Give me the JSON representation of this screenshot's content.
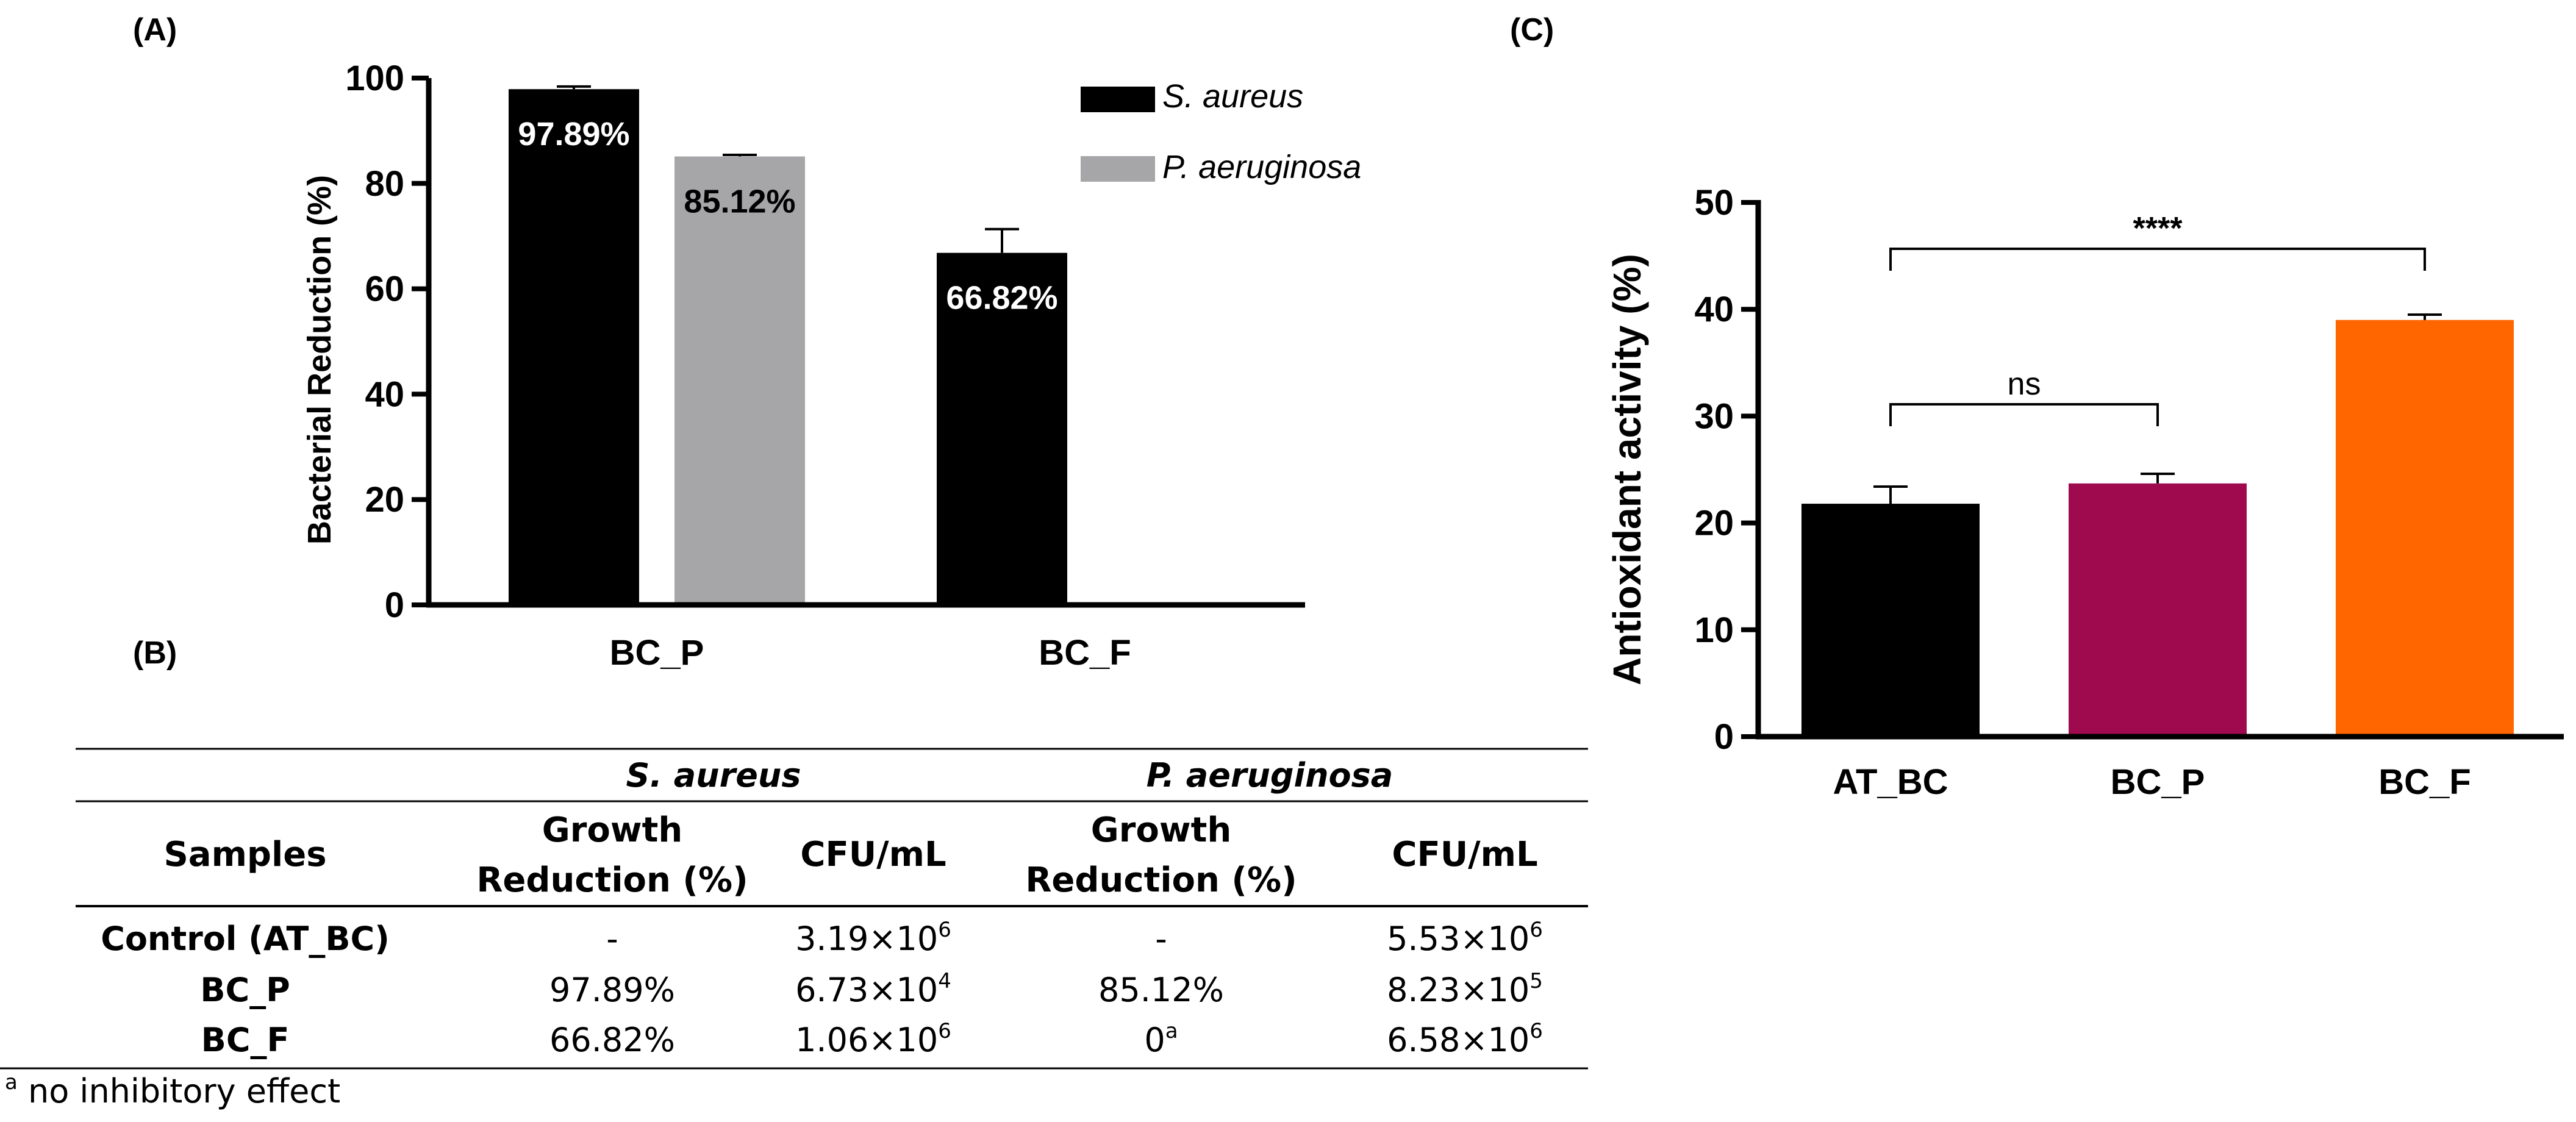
{
  "panels": {
    "a_label": "(A)",
    "b_label": "(B)",
    "c_label": "(C)"
  },
  "chart_data": [
    {
      "type": "bar",
      "ylabel": "Bacterial Reduction (%)",
      "xlabel": "",
      "ylim": [
        0,
        100
      ],
      "yticks": [
        "0",
        "20",
        "40",
        "60",
        "80",
        "100"
      ],
      "categories": [
        "BC_P",
        "BC_F"
      ],
      "series": [
        {
          "name": "S. aureus",
          "color": "#000000",
          "values": [
            97.89,
            66.82
          ],
          "errors": [
            0.5,
            4.5
          ],
          "labels": [
            "97.89%",
            "66.82%"
          ]
        },
        {
          "name": "P. aeruginosa",
          "color": "#a6a6a8",
          "values": [
            85.12,
            0
          ],
          "errors": [
            0.3,
            0
          ],
          "labels": [
            "85.12%",
            ""
          ]
        }
      ],
      "legend": "top-right",
      "grid": false
    },
    {
      "type": "bar",
      "ylabel": "Antioxidant activity (%)",
      "xlabel": "",
      "ylim": [
        0,
        50
      ],
      "yticks": [
        "0",
        "10",
        "20",
        "30",
        "40",
        "50"
      ],
      "categories": [
        "AT_BC",
        "BC_P",
        "BC_F"
      ],
      "values": [
        21.8,
        23.7,
        39.0
      ],
      "errors": [
        1.6,
        0.9,
        0.5
      ],
      "colors": [
        "#000000",
        "#9e0a4d",
        "#ff6600"
      ],
      "annotations": [
        {
          "from": "AT_BC",
          "to": "BC_P",
          "text": "ns"
        },
        {
          "from": "AT_BC",
          "to": "BC_F",
          "text": "****"
        }
      ],
      "grid": false
    },
    {
      "type": "table",
      "groups": [
        "S. aureus",
        "P. aeruginosa"
      ],
      "columns": {
        "samples": "Samples",
        "growth_line1": "Growth",
        "growth_line2": "Reduction (%)",
        "cfu": "CFU/mL"
      },
      "rows": [
        {
          "sample": "Control (AT_BC)",
          "sa_growth": "-",
          "sa_cfu": "3.19×10",
          "sa_cfu_exp": "6",
          "pa_growth": "-",
          "pa_growth_sup": "",
          "pa_cfu": "5.53×10",
          "pa_cfu_exp": "6"
        },
        {
          "sample": "BC_P",
          "sa_growth": "97.89%",
          "sa_cfu": "6.73×10",
          "sa_cfu_exp": "4",
          "pa_growth": "85.12%",
          "pa_growth_sup": "",
          "pa_cfu": "8.23×10",
          "pa_cfu_exp": "5"
        },
        {
          "sample": "BC_F",
          "sa_growth": "66.82%",
          "sa_cfu": "1.06×10",
          "sa_cfu_exp": "6",
          "pa_growth": "0",
          "pa_growth_sup": "a",
          "pa_cfu": "6.58×10",
          "pa_cfu_exp": "6"
        }
      ],
      "footnote_mark": "a",
      "footnote": " no inhibitory effect"
    }
  ]
}
